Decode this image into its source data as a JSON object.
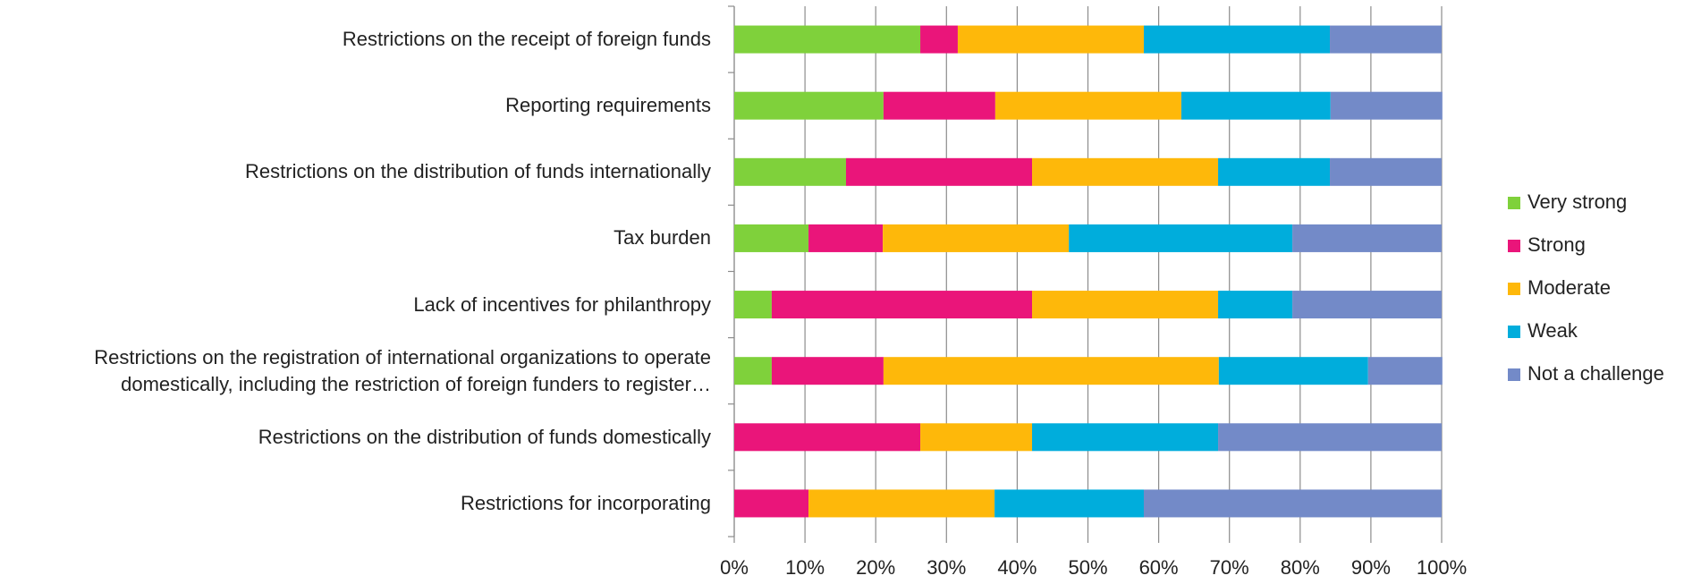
{
  "chart_data": {
    "type": "stacked_barh",
    "categories": [
      "Restrictions on the receipt of foreign funds",
      "Reporting requirements",
      "Restrictions on the distribution of funds internationally",
      "Tax burden",
      "Lack of incentives for philanthropy",
      "Restrictions on the registration of international organizations to operate\ndomestically, including the restriction of foreign funders to register…",
      "Restrictions on the distribution of funds domestically",
      "Restrictions for incorporating"
    ],
    "series": [
      {
        "name": "Very strong",
        "color": "#7fd13b",
        "values": [
          26.3,
          21.1,
          15.8,
          10.5,
          5.3,
          5.3,
          0,
          0
        ]
      },
      {
        "name": "Strong",
        "color": "#ea157a",
        "values": [
          5.3,
          15.8,
          26.3,
          10.5,
          36.8,
          15.8,
          26.3,
          10.5
        ]
      },
      {
        "name": "Moderate",
        "color": "#feb80a",
        "values": [
          26.3,
          26.3,
          26.3,
          26.3,
          26.3,
          47.4,
          15.8,
          26.3
        ]
      },
      {
        "name": "Weak",
        "color": "#00addc",
        "values": [
          26.3,
          21.1,
          15.8,
          31.6,
          10.5,
          21.1,
          26.3,
          21.1
        ]
      },
      {
        "name": "Not a challenge",
        "color": "#738ac8",
        "values": [
          15.8,
          15.8,
          15.8,
          21.1,
          21.1,
          10.5,
          31.6,
          42.1
        ]
      }
    ],
    "xlim": [
      0,
      100
    ],
    "xticks": [
      {
        "value": 0,
        "label": "0%"
      },
      {
        "value": 10,
        "label": "10%"
      },
      {
        "value": 20,
        "label": "20%"
      },
      {
        "value": 30,
        "label": "30%"
      },
      {
        "value": 40,
        "label": "40%"
      },
      {
        "value": 50,
        "label": "50%"
      },
      {
        "value": 60,
        "label": "60%"
      },
      {
        "value": 70,
        "label": "70%"
      },
      {
        "value": 80,
        "label": "80%"
      },
      {
        "value": 90,
        "label": "90%"
      },
      {
        "value": 100,
        "label": "100%"
      }
    ],
    "grid": true,
    "legend": "right"
  }
}
